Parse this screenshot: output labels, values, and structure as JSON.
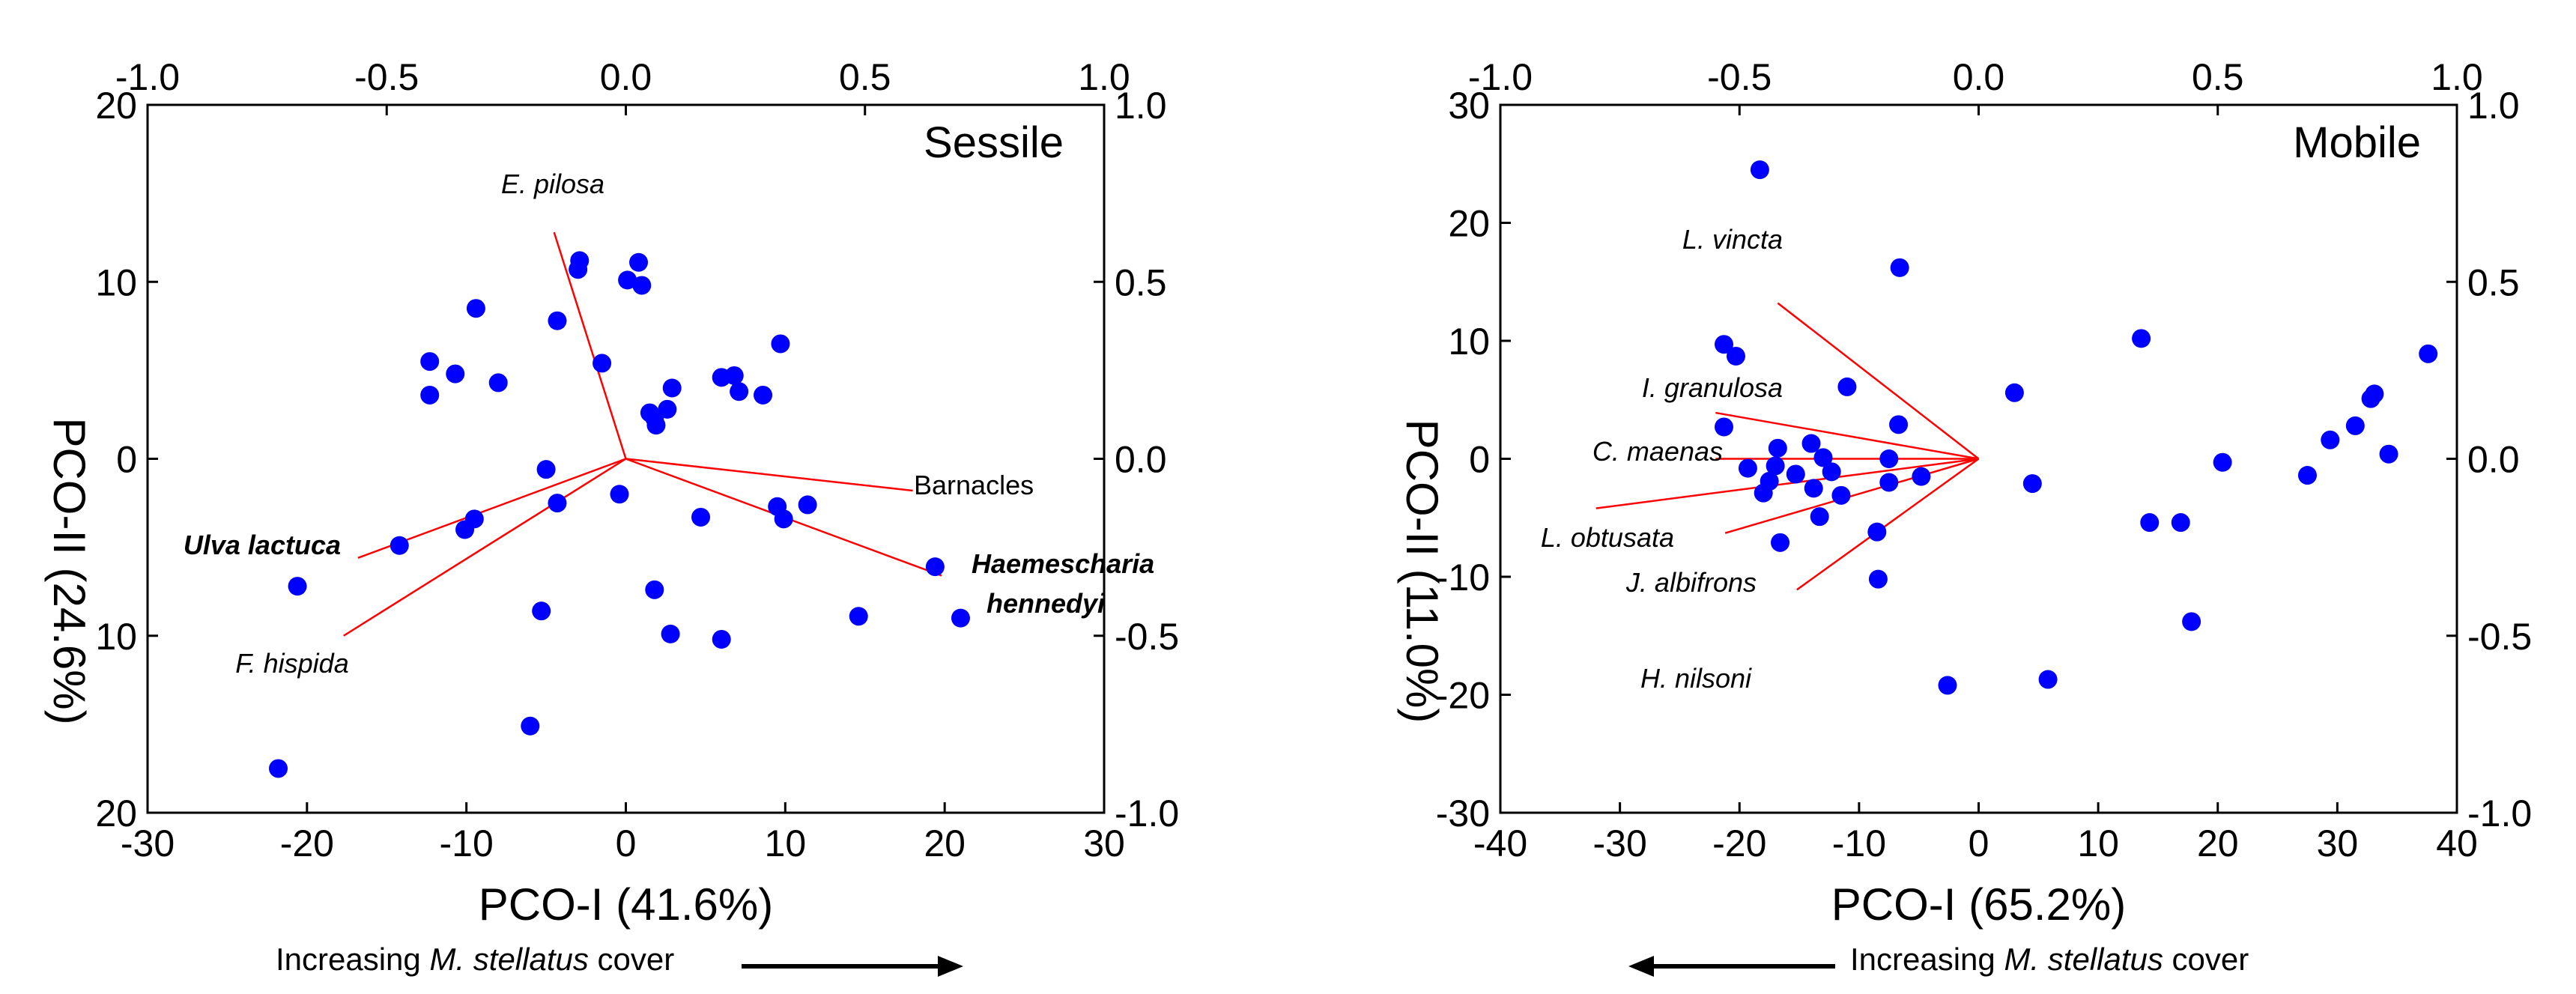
{
  "chart_data": [
    {
      "type": "scatter",
      "panel_label": "Sessile",
      "xlabel": "PCO-I (41.6%)",
      "ylabel": "PCO-II (24.6%)",
      "xlim": [
        -30,
        30
      ],
      "ylim": [
        -20,
        20
      ],
      "x_ticks": [
        "-30",
        "-20",
        "-10",
        "0",
        "10",
        "20",
        "30"
      ],
      "y_ticks": [
        "20",
        "10",
        "0",
        "10",
        "20"
      ],
      "top_axis": {
        "lim": [
          -1.0,
          1.0
        ],
        "ticks": [
          "-1.0",
          "-0.5",
          "0.0",
          "0.5",
          "1.0"
        ]
      },
      "right_axis": {
        "lim": [
          -1.0,
          1.0
        ],
        "ticks": [
          "1.0",
          "0.5",
          "0.0",
          "-0.5",
          "-1.0"
        ]
      },
      "note": {
        "prefix": "Increasing ",
        "species": "M. stellatus",
        "suffix": " cover",
        "arrow": "right"
      },
      "point_color": "#0000ff",
      "vector_color": "#ff0000",
      "points": [
        [
          -21.8,
          -17.5
        ],
        [
          -20.6,
          -7.2
        ],
        [
          -14.2,
          -4.9
        ],
        [
          -12.3,
          5.5
        ],
        [
          -12.3,
          3.6
        ],
        [
          -10.7,
          4.8
        ],
        [
          -10.1,
          -4.0
        ],
        [
          -9.5,
          -3.4
        ],
        [
          -9.4,
          8.5
        ],
        [
          -8.0,
          4.3
        ],
        [
          -6.0,
          -15.1
        ],
        [
          -5.3,
          -8.6
        ],
        [
          -5.0,
          -0.6
        ],
        [
          -4.3,
          7.8
        ],
        [
          -4.3,
          -2.5
        ],
        [
          -3.0,
          10.7
        ],
        [
          -2.9,
          11.2
        ],
        [
          -1.5,
          5.4
        ],
        [
          -0.4,
          -2.0
        ],
        [
          0.1,
          10.1
        ],
        [
          0.8,
          11.1
        ],
        [
          1.0,
          9.8
        ],
        [
          1.5,
          2.6
        ],
        [
          1.8,
          2.3
        ],
        [
          1.9,
          1.9
        ],
        [
          1.8,
          -7.4
        ],
        [
          2.6,
          2.8
        ],
        [
          2.9,
          4.0
        ],
        [
          2.8,
          -9.9
        ],
        [
          4.7,
          -3.3
        ],
        [
          6.0,
          4.6
        ],
        [
          6.0,
          -10.2
        ],
        [
          6.8,
          4.7
        ],
        [
          7.1,
          3.8
        ],
        [
          8.6,
          3.6
        ],
        [
          9.5,
          -2.7
        ],
        [
          9.7,
          6.5
        ],
        [
          9.9,
          -3.4
        ],
        [
          11.4,
          -2.6
        ],
        [
          14.6,
          -8.9
        ],
        [
          19.4,
          -6.1
        ],
        [
          21.0,
          -9.0
        ]
      ],
      "vectors": [
        {
          "label": "E. pilosa",
          "style": "italic",
          "end": [
            -0.15,
            0.64
          ]
        },
        {
          "label": "Barnacles",
          "style": "normal",
          "end": [
            0.6,
            -0.09
          ]
        },
        {
          "label": "Haemescharia",
          "label2": "hennedyi",
          "style": "bold-italic",
          "end": [
            0.66,
            -0.33
          ]
        },
        {
          "label": "Ulva lactuca",
          "style": "bold-italic",
          "end": [
            -0.56,
            -0.28
          ]
        },
        {
          "label": "F. hispida",
          "style": "italic",
          "end": [
            -0.59,
            -0.5
          ]
        }
      ]
    },
    {
      "type": "scatter",
      "panel_label": "Mobile",
      "xlabel": "PCO-I (65.2%)",
      "ylabel": "PCO-II (11.0%)",
      "xlim": [
        -40,
        40
      ],
      "ylim": [
        -30,
        30
      ],
      "x_ticks": [
        "-40",
        "-30",
        "-20",
        "-10",
        "0",
        "10",
        "20",
        "30",
        "40"
      ],
      "y_ticks": [
        "30",
        "20",
        "10",
        "0",
        "-10",
        "-20",
        "-30"
      ],
      "top_axis": {
        "lim": [
          -1.0,
          1.0
        ],
        "ticks": [
          "-1.0",
          "-0.5",
          "0.0",
          "0.5",
          "1.0"
        ]
      },
      "right_axis": {
        "lim": [
          -1.0,
          1.0
        ],
        "ticks": [
          "1.0",
          "0.5",
          "0.0",
          "-0.5",
          "-1.0"
        ]
      },
      "note": {
        "prefix": "Increasing ",
        "species": "M. stellatus",
        "suffix": " cover",
        "arrow": "left"
      },
      "point_color": "#0000ff",
      "vector_color": "#ff0000",
      "points": [
        [
          -18.3,
          24.5
        ],
        [
          -21.3,
          9.7
        ],
        [
          -20.3,
          8.7
        ],
        [
          -21.3,
          2.7
        ],
        [
          -19.3,
          -0.8
        ],
        [
          -18.0,
          -2.9
        ],
        [
          -17.5,
          -1.9
        ],
        [
          -17.0,
          -0.6
        ],
        [
          -16.8,
          0.9
        ],
        [
          -16.6,
          -7.1
        ],
        [
          -15.3,
          -1.3
        ],
        [
          -14.0,
          1.3
        ],
        [
          -13.8,
          -2.5
        ],
        [
          -13.3,
          -4.9
        ],
        [
          -13.0,
          0.1
        ],
        [
          -12.3,
          -1.1
        ],
        [
          -11.5,
          -3.1
        ],
        [
          -11.0,
          6.1
        ],
        [
          -8.5,
          -6.2
        ],
        [
          -8.4,
          -10.2
        ],
        [
          -7.5,
          0.0
        ],
        [
          -7.5,
          -2.0
        ],
        [
          -6.7,
          2.9
        ],
        [
          -6.6,
          16.2
        ],
        [
          -4.8,
          -1.5
        ],
        [
          -2.6,
          -19.2
        ],
        [
          3.0,
          5.6
        ],
        [
          4.5,
          -2.1
        ],
        [
          5.8,
          -18.7
        ],
        [
          13.6,
          10.2
        ],
        [
          14.3,
          -5.4
        ],
        [
          16.9,
          -5.4
        ],
        [
          17.8,
          -13.8
        ],
        [
          20.4,
          -0.3
        ],
        [
          27.5,
          -1.4
        ],
        [
          29.4,
          1.6
        ],
        [
          31.5,
          2.8
        ],
        [
          32.8,
          5.1
        ],
        [
          33.1,
          5.5
        ],
        [
          34.3,
          0.4
        ],
        [
          37.6,
          8.9
        ]
      ],
      "vectors": [
        {
          "label": "L. vincta",
          "style": "italic",
          "end": [
            -0.42,
            0.44
          ]
        },
        {
          "label": "I. granulosa",
          "style": "italic",
          "end": [
            -0.55,
            0.13
          ]
        },
        {
          "label": "C. maenas",
          "style": "italic",
          "end": [
            -0.55,
            0.0
          ]
        },
        {
          "label": "L. obtusata",
          "style": "italic",
          "end": [
            -0.8,
            -0.14
          ]
        },
        {
          "label": "J. albifrons",
          "style": "italic",
          "end": [
            -0.53,
            -0.21
          ]
        },
        {
          "label": "H. nilsoni",
          "style": "italic",
          "end": [
            -0.38,
            -0.37
          ]
        }
      ]
    }
  ]
}
